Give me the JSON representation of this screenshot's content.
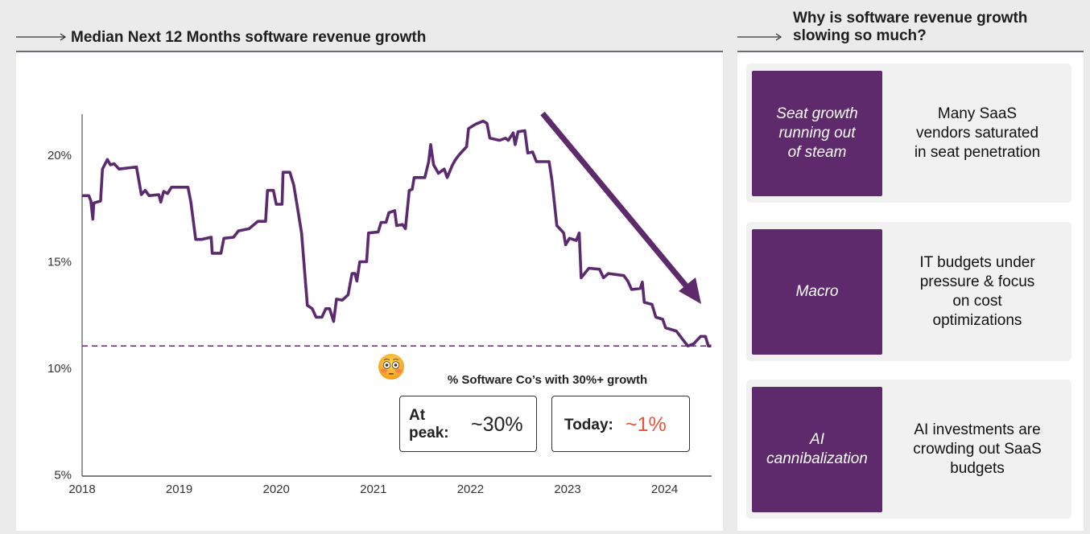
{
  "left_header": {
    "title": "Median Next 12 Months software revenue growth"
  },
  "right_header": {
    "title_line1": "Why is software revenue growth",
    "title_line2": "slowing so much?"
  },
  "colors": {
    "accent": "#5e2a6b",
    "line": "#5c2a6e",
    "highlight": "#e8533a",
    "background": "#ebebeb"
  },
  "chart_data": {
    "type": "line",
    "title": "Median Next 12 Months software revenue growth",
    "xlabel": "",
    "ylabel": "",
    "xlim": [
      2018,
      2024.48
    ],
    "ylim": [
      5,
      21.9
    ],
    "x_ticks": [
      "2018",
      "2019",
      "2020",
      "2021",
      "2022",
      "2023",
      "2024"
    ],
    "y_ticks": [
      "5%",
      "10%",
      "15%",
      "20%"
    ],
    "reference_line": {
      "value": 11.05,
      "style": "dashed"
    },
    "annotation_arrow": "downward trend arrow from late 2022 to mid 2024",
    "series": [
      {
        "name": "Median NTM revenue growth (%)",
        "x": [
          2018.0,
          2018.07,
          2018.09,
          2018.11,
          2018.12,
          2018.15,
          2018.19,
          2018.21,
          2018.26,
          2018.29,
          2018.33,
          2018.38,
          2018.56,
          2018.61,
          2018.65,
          2018.69,
          2018.79,
          2018.81,
          2018.84,
          2018.88,
          2018.92,
          2019.09,
          2019.12,
          2019.17,
          2019.23,
          2019.33,
          2019.34,
          2019.43,
          2019.46,
          2019.56,
          2019.61,
          2019.72,
          2019.81,
          2019.89,
          2019.91,
          2019.97,
          2020.0,
          2020.06,
          2020.07,
          2020.14,
          2020.18,
          2020.22,
          2020.26,
          2020.32,
          2020.37,
          2020.41,
          2020.47,
          2020.51,
          2020.55,
          2020.59,
          2020.62,
          2020.68,
          2020.74,
          2020.78,
          2020.81,
          2020.83,
          2020.86,
          2020.93,
          2020.95,
          2021.05,
          2021.08,
          2021.13,
          2021.16,
          2021.22,
          2021.24,
          2021.3,
          2021.33,
          2021.37,
          2021.4,
          2021.42,
          2021.53,
          2021.57,
          2021.59,
          2021.62,
          2021.67,
          2021.73,
          2021.76,
          2021.81,
          2021.84,
          2021.88,
          2021.96,
          2021.98,
          2022.05,
          2022.13,
          2022.17,
          2022.2,
          2022.3,
          2022.36,
          2022.39,
          2022.44,
          2022.46,
          2022.49,
          2022.56,
          2022.59,
          2022.64,
          2022.68,
          2022.81,
          2022.84,
          2022.89,
          2022.96,
          2022.98,
          2023.02,
          2023.09,
          2023.12,
          2023.14,
          2023.22,
          2023.33,
          2023.37,
          2023.42,
          2023.58,
          2023.62,
          2023.66,
          2023.75,
          2023.77,
          2023.79,
          2023.87,
          2023.91,
          2023.98,
          2024.01,
          2024.12,
          2024.17,
          2024.24,
          2024.3,
          2024.37,
          2024.42,
          2024.45,
          2024.48
        ],
        "values": [
          18.1,
          18.1,
          17.85,
          17.0,
          17.75,
          17.8,
          17.85,
          19.35,
          19.8,
          19.55,
          19.6,
          19.35,
          19.45,
          18.15,
          18.35,
          18.1,
          18.15,
          17.8,
          18.3,
          18.2,
          18.5,
          18.5,
          17.8,
          16.05,
          16.05,
          16.15,
          15.4,
          15.4,
          16.1,
          16.15,
          16.45,
          16.55,
          16.9,
          16.9,
          18.35,
          18.35,
          17.7,
          17.7,
          19.2,
          19.2,
          18.6,
          17.5,
          16.35,
          12.95,
          12.8,
          12.4,
          12.4,
          12.8,
          12.8,
          12.2,
          13.25,
          13.2,
          13.45,
          14.45,
          14.45,
          14.1,
          15.0,
          15.0,
          16.35,
          16.4,
          16.85,
          16.85,
          17.3,
          17.4,
          16.7,
          16.75,
          16.55,
          18.35,
          18.4,
          18.95,
          18.95,
          19.7,
          20.5,
          19.55,
          19.15,
          19.35,
          18.95,
          19.5,
          19.75,
          20.0,
          20.4,
          21.25,
          21.45,
          21.6,
          21.5,
          20.8,
          20.7,
          20.8,
          20.7,
          21.05,
          20.5,
          21.1,
          21.15,
          20.1,
          20.15,
          19.7,
          19.7,
          18.8,
          16.7,
          16.35,
          15.8,
          16.1,
          16.0,
          16.35,
          14.25,
          14.7,
          14.65,
          14.25,
          14.45,
          14.35,
          14.1,
          13.7,
          13.75,
          14.05,
          13.1,
          13.0,
          12.4,
          12.3,
          11.9,
          11.75,
          11.45,
          11.05,
          11.15,
          11.5,
          11.5,
          11.05,
          11.05
        ]
      }
    ]
  },
  "callout": {
    "title": "% Software Co’s with 30%+ growth",
    "peak_label_line1": "At",
    "peak_label_line2": "peak:",
    "peak_value": "~30%",
    "today_label": "Today:",
    "today_value": "~1%",
    "emoji_icon": "flushed-face-icon"
  },
  "reasons": [
    {
      "tag_lines": [
        "Seat growth",
        "running out",
        "of steam"
      ],
      "desc_lines": [
        "Many SaaS",
        "vendors saturated",
        "in seat penetration"
      ]
    },
    {
      "tag_lines": [
        "Macro"
      ],
      "desc_lines": [
        "IT budgets under",
        "pressure & focus",
        "on cost",
        "optimizations"
      ]
    },
    {
      "tag_lines": [
        "AI",
        "cannibalization"
      ],
      "desc_lines": [
        "AI investments are",
        "crowding out SaaS",
        "budgets"
      ]
    }
  ]
}
